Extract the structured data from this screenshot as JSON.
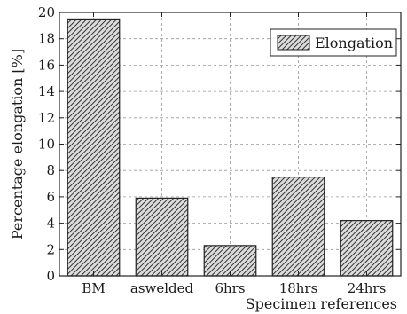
{
  "chart_data": {
    "type": "bar",
    "categories": [
      "BM",
      "aswelded",
      "6hrs",
      "18hrs",
      "24hrs"
    ],
    "series": [
      {
        "name": "Elongation",
        "values": [
          19.5,
          5.9,
          2.3,
          7.5,
          4.2
        ]
      }
    ],
    "xlabel": "Specimen references",
    "ylabel": "Percentage elongation [%]",
    "ylim": [
      0,
      20
    ],
    "yticks": [
      0,
      2,
      4,
      6,
      8,
      10,
      12,
      14,
      16,
      18,
      20
    ],
    "grid": "dashed",
    "legend": "top-right",
    "bar_fill": "hatched",
    "colors": {
      "bar_stroke": "#222222",
      "hatch": "#333333",
      "grid": "#999999"
    }
  }
}
